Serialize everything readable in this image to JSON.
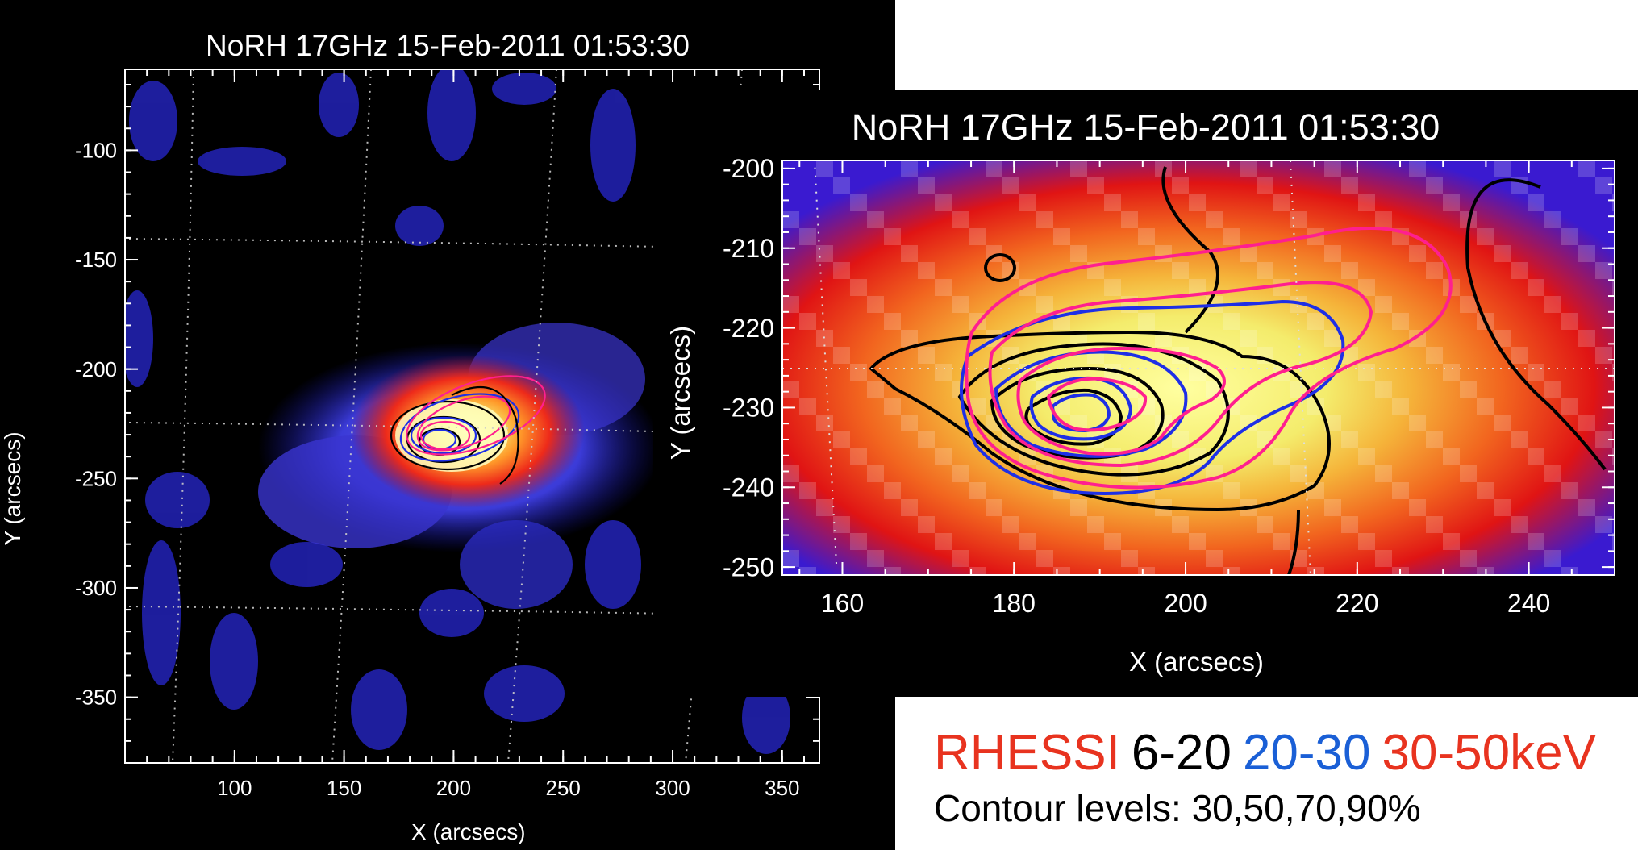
{
  "left_panel": {
    "title": "NoRH 17GHz  15-Feb-2011 01:53:30",
    "xlabel": "X (arcsecs)",
    "ylabel": "Y (arcsecs)",
    "xticks": [
      "100",
      "150",
      "200",
      "250",
      "300",
      "350"
    ],
    "yticks": [
      "-100",
      "-150",
      "-200",
      "-250",
      "-300",
      "-350"
    ],
    "x_range": [
      50,
      367
    ],
    "y_range": [
      -380,
      -63
    ]
  },
  "right_panel": {
    "title": "NoRH 17GHz  15-Feb-2011 01:53:30",
    "xlabel": "X (arcsecs)",
    "ylabel": "Y (arcsecs)",
    "xticks": [
      "160",
      "180",
      "200",
      "220",
      "240"
    ],
    "yticks": [
      "-200",
      "-210",
      "-220",
      "-230",
      "-240",
      "-250"
    ],
    "x_range": [
      153,
      250
    ],
    "y_range": [
      -251,
      -199
    ]
  },
  "legend": {
    "instrument": "RHESSI",
    "band1": "6-20",
    "band2": "20-30",
    "band3": "30-50keV",
    "contour_text": "Contour levels: 30,50,70,90%",
    "colors": {
      "instrument": "#e8331f",
      "band1": "#000000",
      "band2": "#1a5fd6",
      "band3": "#e8331f"
    }
  },
  "contour_colors": {
    "band1": "#000000",
    "band2": "#1e2fe6",
    "band3": "#ff1f8f"
  }
}
